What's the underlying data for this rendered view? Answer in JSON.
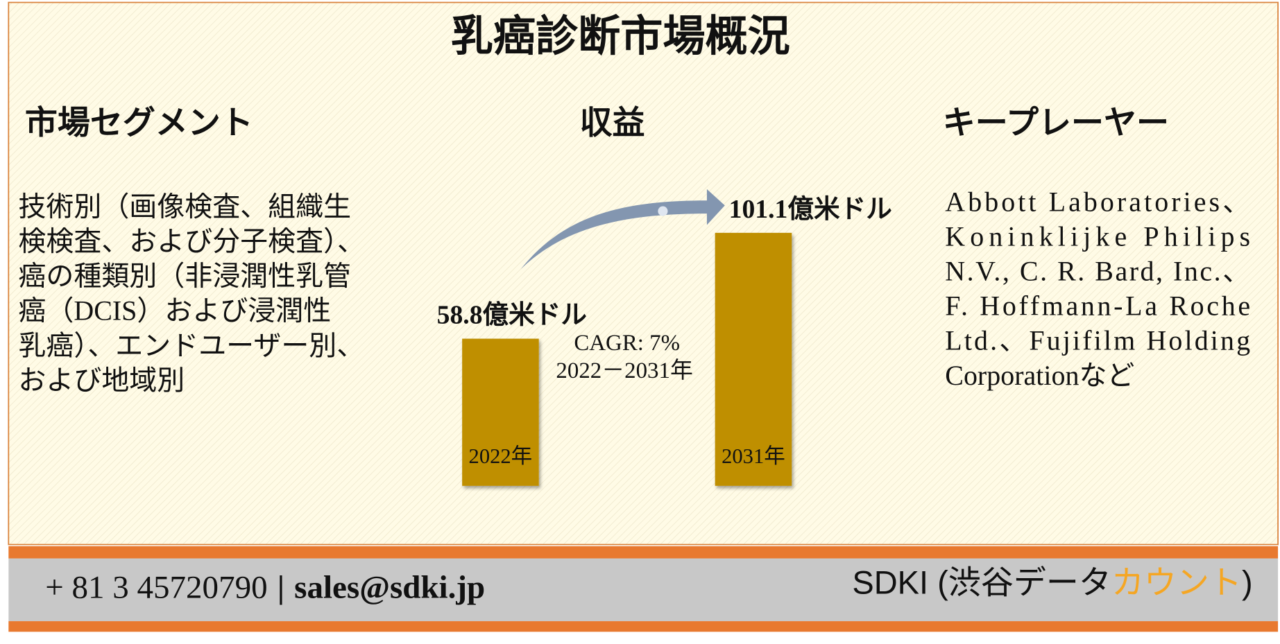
{
  "header": {
    "title": "乳癌診断市場概況"
  },
  "segments": {
    "heading": "市場セグメント",
    "lines": [
      "技術別（画像検査、組織生",
      "検検査、および分子検査）、",
      "癌の種類別（非浸潤性乳管",
      "癌（DCIS）および浸潤性",
      "乳癌）、エンドユーザー別、",
      "および地域別"
    ]
  },
  "revenue": {
    "heading": "収益",
    "bars": [
      {
        "year": "2022年",
        "value": 58.8,
        "label": "58.8億米ドル"
      },
      {
        "year": "2031年",
        "value": 101.1,
        "label": "101.1億米ドル"
      }
    ],
    "cagr": "CAGR: 7%",
    "period": "2022－2031年"
  },
  "players": {
    "heading": "キープレーヤー",
    "lines": [
      "Abbott Laboratories、",
      "Koninklijke Philips",
      "N.V., C. R. Bard, Inc.、",
      "F. Hoffmann-La Roche",
      "Ltd.、Fujifilm Holding",
      "Corporationなど"
    ]
  },
  "footer": {
    "phone": "+ 81 3 45720790",
    "separator": "|",
    "email": "sales@sdki.jp",
    "brand": "SDKI (渋谷データ",
    "brand_highlight": "カウント",
    "brand_end": ")"
  }
}
